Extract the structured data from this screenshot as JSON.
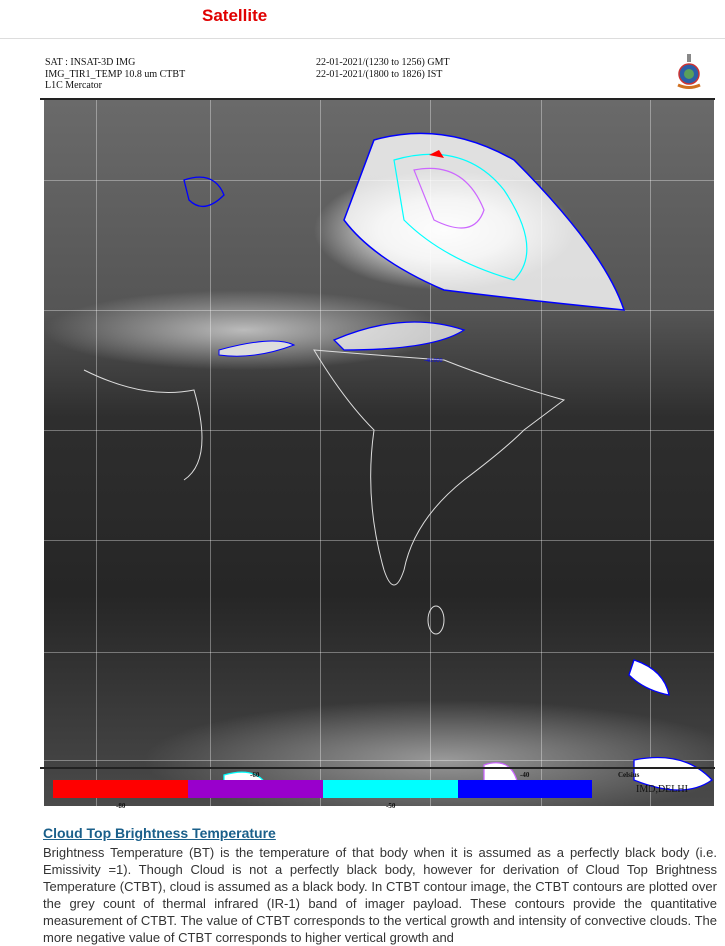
{
  "page": {
    "title": "Satellite"
  },
  "figure": {
    "header_left": [
      "SAT : INSAT-3D IMG",
      "IMG_TIR1_TEMP 10.8 um CTBT",
      "L1C Mercator"
    ],
    "header_right": [
      "22-01-2021/(1230 to 1256) GMT",
      "22-01-2021/(1800 to 1826) IST"
    ],
    "contour_label": "-40.000",
    "colorbar": {
      "unit": "Celsius",
      "colors": [
        "#ff0000",
        "#9900cc",
        "#00ffff",
        "#0000ff"
      ],
      "labels_top": [
        "-60",
        "-40"
      ],
      "labels_bottom": [
        "-80",
        "-50"
      ]
    },
    "credit": "IMD,DELHI"
  },
  "section": {
    "title": "Cloud Top Brightness Temperature",
    "description": "Brightness Temperature (BT) is the temperature of that body when it is assumed as a perfectly black body (i.e. Emissivity =1). Though Cloud is not a perfectly black body, however for derivation of Cloud Top Brightness Temperature (CTBT), cloud is assumed as a black body. In CTBT contour image, the CTBT contours are plotted over the grey count of thermal infrared (IR-1) band of imager payload. These contours provide the quantitative measurement of CTBT. The value of CTBT corresponds to the vertical growth and intensity of convective clouds. The more negative value of CTBT corresponds to higher vertical growth and"
  }
}
